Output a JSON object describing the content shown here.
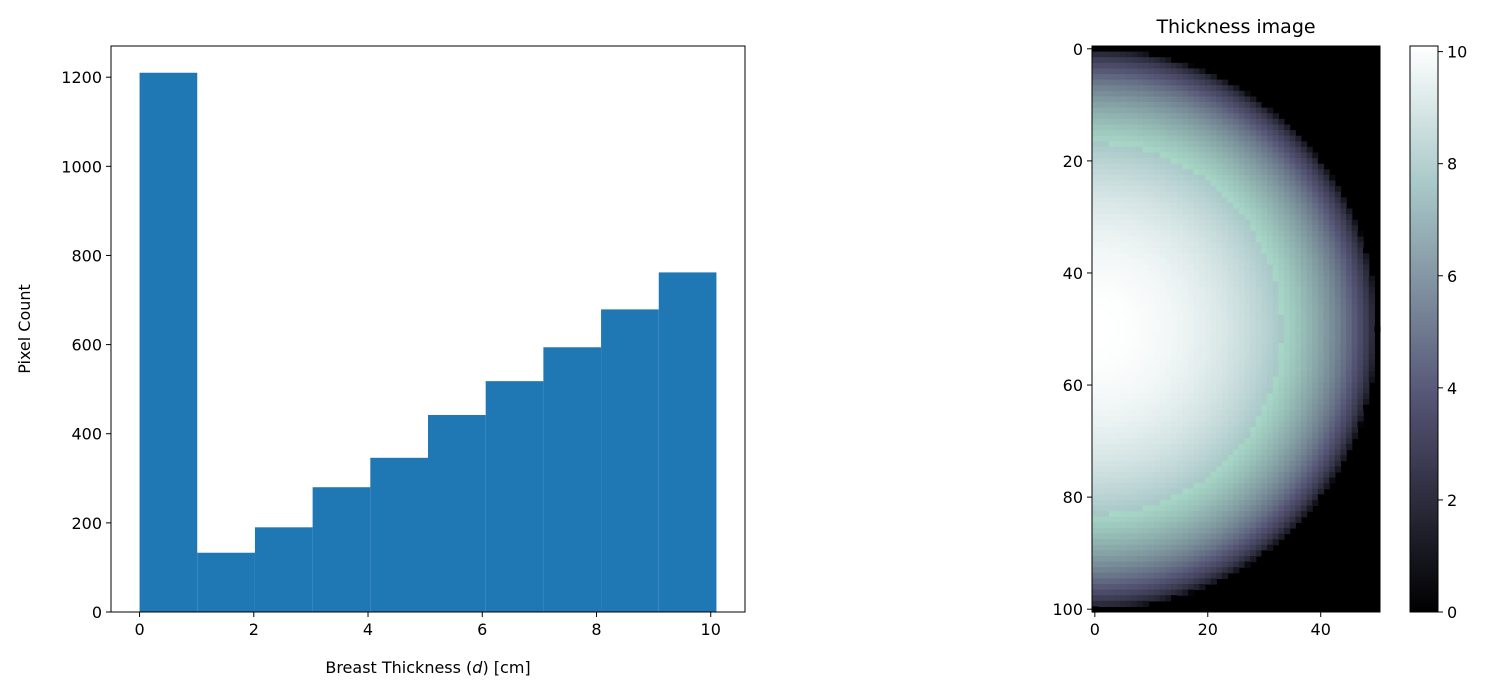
{
  "chart_data": [
    {
      "type": "bar",
      "title": "",
      "xlabel": "Breast Thickness (d) [cm]",
      "xlabel_parts": {
        "before": "Breast Thickness (",
        "var": "d",
        "after": ") [cm]"
      },
      "ylabel": "Pixel Count",
      "bin_edges": [
        0,
        1.01,
        2.02,
        3.03,
        4.04,
        5.05,
        6.06,
        7.07,
        8.08,
        9.09,
        10.1
      ],
      "values": [
        1210,
        133,
        190,
        280,
        346,
        442,
        518,
        594,
        679,
        762
      ],
      "xlim": [
        -0.5,
        10.6
      ],
      "ylim": [
        0,
        1270
      ],
      "xticks": [
        0,
        2,
        4,
        6,
        8,
        10
      ],
      "yticks": [
        0,
        200,
        400,
        600,
        800,
        1000,
        1200
      ],
      "bar_color": "#1f77b4"
    },
    {
      "type": "heatmap",
      "title": "Thickness image",
      "colormap": "bone",
      "shape": {
        "rows": 101,
        "cols": 51
      },
      "description_values": {
        "max_thickness": 10.1,
        "radius_px": 50,
        "center_row": 50,
        "center_col": 0
      },
      "xlim": [
        -0.5,
        50.5
      ],
      "ylim": [
        100.5,
        -0.5
      ],
      "xticks": [
        0,
        20,
        40
      ],
      "yticks": [
        0,
        20,
        40,
        60,
        80,
        100
      ],
      "colorbar": {
        "min": 0,
        "max": 10.1,
        "ticks": [
          0,
          2,
          4,
          6,
          8,
          10
        ]
      }
    }
  ]
}
